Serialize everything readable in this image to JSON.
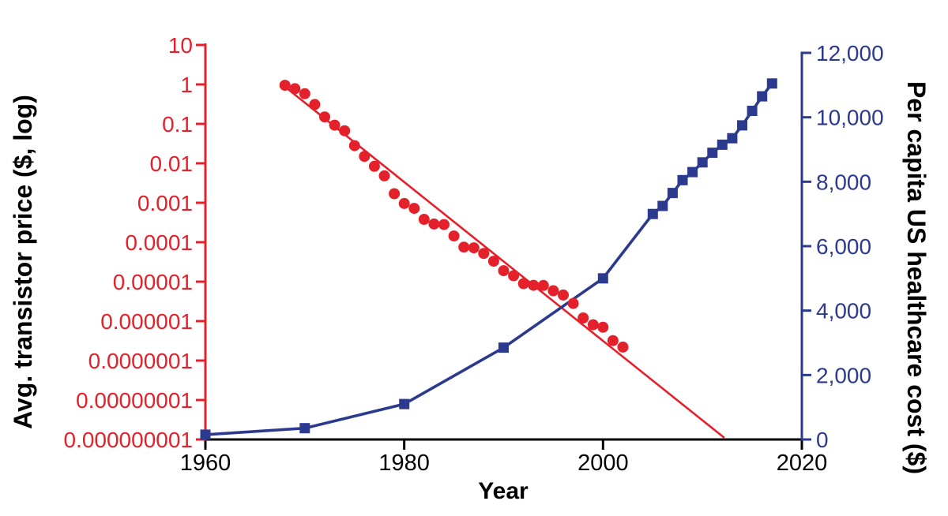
{
  "chart_data": {
    "type": "line",
    "title": "",
    "background": "#ffffff",
    "grid": false,
    "legend": "none",
    "x_axis": {
      "label": "Year",
      "range": [
        1960,
        2020
      ],
      "ticks": [
        1960,
        1980,
        2000,
        2020
      ],
      "tick_labels": [
        "1960",
        "1980",
        "2000",
        "2020"
      ],
      "color": "#000000"
    },
    "left_axis": {
      "label": "Avg. transistor price ($, log)",
      "scale": "log",
      "range": [
        1e-09,
        10
      ],
      "tick_values": [
        10,
        1,
        0.1,
        0.01,
        0.001,
        0.0001,
        1e-05,
        1e-06,
        1e-07,
        1e-08,
        1e-09
      ],
      "tick_labels": [
        "10",
        "1",
        "0.1",
        "0.01",
        "0.001",
        "0.0001",
        "0.00001",
        "0.000001",
        "0.0000001",
        "0.00000001",
        "0.000000001"
      ],
      "color": "#e4212b"
    },
    "right_axis": {
      "label": "Per capita US healthcare cost ($)",
      "scale": "linear",
      "range": [
        0,
        12000
      ],
      "tick_values": [
        12000,
        10000,
        8000,
        6000,
        4000,
        2000,
        0
      ],
      "tick_labels": [
        "12,000",
        "10,000",
        "8,000",
        "6,000",
        "4,000",
        "2,000",
        "0"
      ],
      "color": "#2b3a8e"
    },
    "series": [
      {
        "id": "transistor-price-trend",
        "name": "Transistor price trend line",
        "axis": "left",
        "marker": "none",
        "show_line": true,
        "line_width": 2.6,
        "color": "#e4212b",
        "points": [
          [
            1967.5,
            1.1
          ],
          [
            2012.2,
            1.1e-09
          ]
        ]
      },
      {
        "id": "healthcare-cost",
        "name": "Per capita US healthcare cost",
        "axis": "right",
        "marker": "square",
        "marker_size": 13,
        "show_line": true,
        "line_width": 3.6,
        "color": "#2b3a8e",
        "points": [
          [
            1960,
            150
          ],
          [
            1970,
            350
          ],
          [
            1980,
            1100
          ],
          [
            1990,
            2850
          ],
          [
            2000,
            5000
          ],
          [
            2005,
            7000
          ],
          [
            2006,
            7250
          ],
          [
            2007,
            7650
          ],
          [
            2008,
            8050
          ],
          [
            2009,
            8300
          ],
          [
            2010,
            8600
          ],
          [
            2011,
            8900
          ],
          [
            2012,
            9150
          ],
          [
            2013,
            9350
          ],
          [
            2014,
            9750
          ],
          [
            2015,
            10200
          ],
          [
            2016,
            10650
          ],
          [
            2017,
            11050
          ]
        ]
      },
      {
        "id": "transistor-price",
        "name": "Avg. transistor price",
        "axis": "left",
        "marker": "circle",
        "marker_size": 7,
        "show_line": false,
        "color": "#e4212b",
        "points": [
          [
            1968,
            0.95
          ],
          [
            1969,
            0.78
          ],
          [
            1970,
            0.58
          ],
          [
            1971,
            0.31
          ],
          [
            1972,
            0.15
          ],
          [
            1973,
            0.093
          ],
          [
            1974,
            0.067
          ],
          [
            1975,
            0.028
          ],
          [
            1976,
            0.015
          ],
          [
            1977,
            0.0084
          ],
          [
            1978,
            0.0048
          ],
          [
            1979,
            0.0017
          ],
          [
            1980,
            0.00096
          ],
          [
            1981,
            0.00072
          ],
          [
            1982,
            0.00038
          ],
          [
            1983,
            0.00029
          ],
          [
            1984,
            0.00028
          ],
          [
            1985,
            0.000144
          ],
          [
            1986,
            7.5e-05
          ],
          [
            1987,
            7.2e-05
          ],
          [
            1988,
            5.2e-05
          ],
          [
            1989,
            3.3e-05
          ],
          [
            1990,
            1.9e-05
          ],
          [
            1991,
            1.41e-05
          ],
          [
            1992,
            8.9e-06
          ],
          [
            1993,
            8.1e-06
          ],
          [
            1994,
            8e-06
          ],
          [
            1995,
            5.9e-06
          ],
          [
            1996,
            4.6e-06
          ],
          [
            1997,
            2.8e-06
          ],
          [
            1998,
            1.2e-06
          ],
          [
            1999,
            8.1e-07
          ],
          [
            2000,
            7e-07
          ],
          [
            2001,
            3.2e-07
          ],
          [
            2002,
            2.2e-07
          ]
        ]
      }
    ]
  }
}
